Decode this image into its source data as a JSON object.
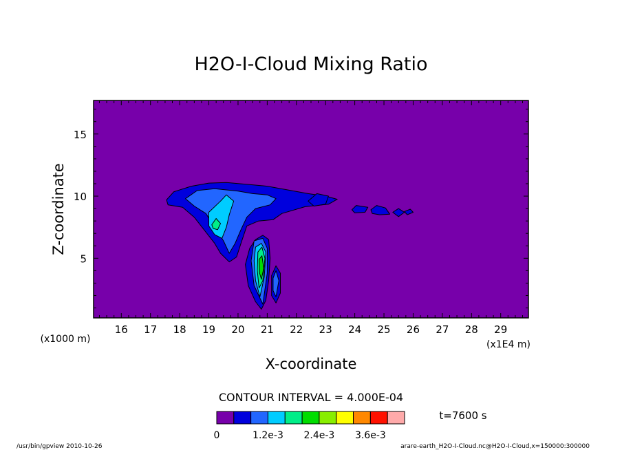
{
  "chart_data": {
    "type": "contour",
    "title": "H2O-I-Cloud Mixing Ratio",
    "xlabel": "X-coordinate",
    "ylabel": "Z-coordinate",
    "x_unit_label": "(x1E4 m)",
    "y_unit_label": "(x1000 m)",
    "xlim": [
      15.05,
      29.95
    ],
    "ylim": [
      0.2,
      17.7
    ],
    "x_ticks": [
      16,
      17,
      18,
      19,
      20,
      21,
      22,
      23,
      24,
      25,
      26,
      27,
      28,
      29
    ],
    "y_ticks": [
      5,
      10,
      15
    ],
    "contour_interval_text": "CONTOUR INTERVAL = 4.000E-04",
    "time_label": "t=7600 s",
    "colorbar": {
      "colors": [
        "#7700aa",
        "#0000dd",
        "#2266ff",
        "#00ccff",
        "#00ee88",
        "#00dd00",
        "#88ee00",
        "#ffff00",
        "#ff8800",
        "#ff1100",
        "#ffaaaa"
      ],
      "tick_labels": [
        "0",
        "1.2e-3",
        "2.4e-3",
        "3.6e-3"
      ],
      "tick_values": [
        0,
        0.0012,
        0.0024,
        0.0036
      ],
      "interval": 0.0004
    },
    "footer_left": "/usr/bin/gpview  2010-10-26",
    "footer_right": "arare-earth_H2O-I-Cloud.nc@H2O-I-Cloud,x=150000:300000",
    "regions": [
      {
        "level": 1,
        "points": [
          [
            17.55,
            9.7
          ],
          [
            17.8,
            10.35
          ],
          [
            18.4,
            10.8
          ],
          [
            19.0,
            11.05
          ],
          [
            19.6,
            11.1
          ],
          [
            20.3,
            10.95
          ],
          [
            21.0,
            10.8
          ],
          [
            21.7,
            10.5
          ],
          [
            22.4,
            10.2
          ],
          [
            23.0,
            10.0
          ],
          [
            23.4,
            9.75
          ],
          [
            23.1,
            9.35
          ],
          [
            22.3,
            9.15
          ],
          [
            21.5,
            8.6
          ],
          [
            21.2,
            8.1
          ],
          [
            20.7,
            8.0
          ],
          [
            20.3,
            7.6
          ],
          [
            20.1,
            6.2
          ],
          [
            19.95,
            5.1
          ],
          [
            19.7,
            4.7
          ],
          [
            19.4,
            5.4
          ],
          [
            19.2,
            6.2
          ],
          [
            18.9,
            7.1
          ],
          [
            18.5,
            8.3
          ],
          [
            18.1,
            9.1
          ],
          [
            17.6,
            9.3
          ]
        ]
      },
      {
        "level": 1,
        "points": [
          [
            20.6,
            6.5
          ],
          [
            20.85,
            6.85
          ],
          [
            21.05,
            6.5
          ],
          [
            21.1,
            5.0
          ],
          [
            21.05,
            3.2
          ],
          [
            20.95,
            1.6
          ],
          [
            20.8,
            0.9
          ],
          [
            20.6,
            1.5
          ],
          [
            20.35,
            2.8
          ],
          [
            20.25,
            4.5
          ],
          [
            20.4,
            5.8
          ]
        ]
      },
      {
        "level": 1,
        "points": [
          [
            21.15,
            3.6
          ],
          [
            21.3,
            4.4
          ],
          [
            21.45,
            3.8
          ],
          [
            21.45,
            2.2
          ],
          [
            21.3,
            1.4
          ],
          [
            21.15,
            2.0
          ]
        ]
      },
      {
        "level": 1,
        "points": [
          [
            22.4,
            9.6
          ],
          [
            22.7,
            10.2
          ],
          [
            23.1,
            10.0
          ],
          [
            23.0,
            9.35
          ],
          [
            22.6,
            9.2
          ]
        ]
      },
      {
        "level": 1,
        "points": [
          [
            23.9,
            8.9
          ],
          [
            24.05,
            9.25
          ],
          [
            24.45,
            9.1
          ],
          [
            24.35,
            8.7
          ],
          [
            24.0,
            8.65
          ]
        ]
      },
      {
        "level": 1,
        "points": [
          [
            24.55,
            8.9
          ],
          [
            24.75,
            9.25
          ],
          [
            25.05,
            9.05
          ],
          [
            25.2,
            8.55
          ],
          [
            24.85,
            8.5
          ],
          [
            24.6,
            8.6
          ]
        ]
      },
      {
        "level": 1,
        "points": [
          [
            25.3,
            8.7
          ],
          [
            25.5,
            9.0
          ],
          [
            25.7,
            8.7
          ],
          [
            25.5,
            8.35
          ]
        ]
      },
      {
        "level": 1,
        "points": [
          [
            25.7,
            8.75
          ],
          [
            25.9,
            8.95
          ],
          [
            26.0,
            8.7
          ],
          [
            25.8,
            8.5
          ]
        ]
      },
      {
        "level": 2,
        "points": [
          [
            18.2,
            9.8
          ],
          [
            18.6,
            10.45
          ],
          [
            19.2,
            10.6
          ],
          [
            19.6,
            10.5
          ],
          [
            20.0,
            10.4
          ],
          [
            20.5,
            10.2
          ],
          [
            21.0,
            10.1
          ],
          [
            21.3,
            9.8
          ],
          [
            21.1,
            9.3
          ],
          [
            20.6,
            9.0
          ],
          [
            20.3,
            8.3
          ],
          [
            20.1,
            7.3
          ],
          [
            19.9,
            6.2
          ],
          [
            19.7,
            5.4
          ],
          [
            19.5,
            6.4
          ],
          [
            19.2,
            7.5
          ],
          [
            18.9,
            8.6
          ],
          [
            18.5,
            9.2
          ]
        ]
      },
      {
        "level": 2,
        "points": [
          [
            20.55,
            6.4
          ],
          [
            20.85,
            6.6
          ],
          [
            21.0,
            5.8
          ],
          [
            21.0,
            3.8
          ],
          [
            20.85,
            1.3
          ],
          [
            20.55,
            2.8
          ],
          [
            20.45,
            4.8
          ]
        ]
      },
      {
        "level": 2,
        "points": [
          [
            21.2,
            3.4
          ],
          [
            21.3,
            4.0
          ],
          [
            21.4,
            3.2
          ],
          [
            21.3,
            1.9
          ],
          [
            21.2,
            2.4
          ]
        ]
      },
      {
        "level": 3,
        "points": [
          [
            19.0,
            8.7
          ],
          [
            19.4,
            9.6
          ],
          [
            19.6,
            10.1
          ],
          [
            19.85,
            9.6
          ],
          [
            19.7,
            8.5
          ],
          [
            19.6,
            7.5
          ],
          [
            19.45,
            6.6
          ],
          [
            19.2,
            6.9
          ],
          [
            19.0,
            7.6
          ]
        ]
      },
      {
        "level": 3,
        "points": [
          [
            20.6,
            5.9
          ],
          [
            20.8,
            6.2
          ],
          [
            20.95,
            5.5
          ],
          [
            20.9,
            3.5
          ],
          [
            20.75,
            1.9
          ],
          [
            20.6,
            3.2
          ],
          [
            20.55,
            4.8
          ]
        ]
      },
      {
        "level": 4,
        "points": [
          [
            19.1,
            7.7
          ],
          [
            19.25,
            8.2
          ],
          [
            19.4,
            7.8
          ],
          [
            19.3,
            7.3
          ],
          [
            19.15,
            7.4
          ]
        ]
      },
      {
        "level": 4,
        "points": [
          [
            20.68,
            5.5
          ],
          [
            20.82,
            5.9
          ],
          [
            20.92,
            5.0
          ],
          [
            20.85,
            3.2
          ],
          [
            20.72,
            2.6
          ],
          [
            20.66,
            4.0
          ]
        ]
      },
      {
        "level": 5,
        "points": [
          [
            20.72,
            4.9
          ],
          [
            20.82,
            5.2
          ],
          [
            20.88,
            4.2
          ],
          [
            20.8,
            3.3
          ],
          [
            20.74,
            3.8
          ]
        ]
      }
    ]
  }
}
